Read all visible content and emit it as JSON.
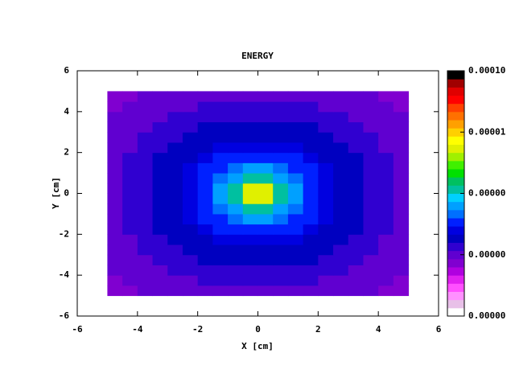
{
  "chart_data": {
    "type": "heatmap",
    "title": "ENERGY",
    "xlabel": "X [cm]",
    "ylabel": "Y [cm]",
    "xlim": [
      -6,
      6
    ],
    "ylim": [
      -6,
      6
    ],
    "xticks": [
      -6,
      -4,
      -2,
      0,
      2,
      4,
      6
    ],
    "yticks": [
      -6,
      -4,
      -2,
      0,
      2,
      4,
      6
    ],
    "xbins": [
      -5,
      -4.5,
      -4,
      -3.5,
      -3,
      -2.5,
      -2,
      -1.5,
      -1,
      -0.5,
      0,
      0.5,
      1,
      1.5,
      2,
      2.5,
      3,
      3.5,
      4,
      4.5,
      5
    ],
    "ybins": [
      -5,
      -4.5,
      -4,
      -3.5,
      -3,
      -2.5,
      -2,
      -1.5,
      -1,
      -0.5,
      0,
      0.5,
      1,
      1.5,
      2,
      2.5,
      3,
      3.5,
      4,
      4.5,
      5
    ],
    "values": [
      [
        8e-08,
        8e-08,
        9e-08,
        9e-08,
        1e-07,
        1e-07,
        1e-07,
        1e-07,
        1e-07,
        1e-07,
        1e-07,
        1e-07,
        1e-07,
        1e-07,
        1e-07,
        1e-07,
        9e-08,
        9e-08,
        8e-08,
        8e-08
      ],
      [
        8e-08,
        9e-08,
        9e-08,
        1e-07,
        1e-07,
        1e-07,
        1.2e-07,
        1.2e-07,
        1.2e-07,
        1.2e-07,
        1.2e-07,
        1.2e-07,
        1.2e-07,
        1.2e-07,
        1e-07,
        1e-07,
        1e-07,
        9e-08,
        9e-08,
        8e-08
      ],
      [
        9e-08,
        9e-08,
        1e-07,
        1e-07,
        1.2e-07,
        1.2e-07,
        1.4e-07,
        1.4e-07,
        1.4e-07,
        1.4e-07,
        1.4e-07,
        1.4e-07,
        1.4e-07,
        1.4e-07,
        1.2e-07,
        1.2e-07,
        1e-07,
        1e-07,
        9e-08,
        9e-08
      ],
      [
        9e-08,
        1e-07,
        1e-07,
        1.2e-07,
        1.2e-07,
        1.4e-07,
        1.6e-07,
        1.6e-07,
        1.6e-07,
        1.6e-07,
        1.6e-07,
        1.6e-07,
        1.6e-07,
        1.6e-07,
        1.4e-07,
        1.2e-07,
        1.2e-07,
        1e-07,
        1e-07,
        9e-08
      ],
      [
        1e-07,
        1e-07,
        1.2e-07,
        1.2e-07,
        1.4e-07,
        1.6e-07,
        1.6e-07,
        2e-07,
        2e-07,
        2e-07,
        2e-07,
        2e-07,
        2e-07,
        1.6e-07,
        1.6e-07,
        1.4e-07,
        1.2e-07,
        1.2e-07,
        1e-07,
        1e-07
      ],
      [
        1e-07,
        1e-07,
        1.2e-07,
        1.4e-07,
        1.6e-07,
        2e-07,
        2e-07,
        2.5e-07,
        2.5e-07,
        2.5e-07,
        2.5e-07,
        2.5e-07,
        2.5e-07,
        2e-07,
        2e-07,
        1.6e-07,
        1.4e-07,
        1.2e-07,
        1e-07,
        1e-07
      ],
      [
        1e-07,
        1.2e-07,
        1.4e-07,
        1.6e-07,
        1.6e-07,
        2e-07,
        2.5e-07,
        3e-07,
        3e-07,
        3e-07,
        3e-07,
        3e-07,
        3e-07,
        2.5e-07,
        2e-07,
        1.6e-07,
        1.6e-07,
        1.4e-07,
        1.2e-07,
        1e-07
      ],
      [
        1e-07,
        1.2e-07,
        1.4e-07,
        1.6e-07,
        2e-07,
        2.5e-07,
        3e-07,
        3e-07,
        4e-07,
        6e-07,
        6e-07,
        4e-07,
        3e-07,
        3e-07,
        2.5e-07,
        2e-07,
        1.6e-07,
        1.4e-07,
        1.2e-07,
        1e-07
      ],
      [
        1e-07,
        1.2e-07,
        1.4e-07,
        1.6e-07,
        2e-07,
        2.5e-07,
        3e-07,
        4e-07,
        6e-07,
        1.2e-06,
        1.2e-06,
        6e-07,
        4e-07,
        3e-07,
        2.5e-07,
        2e-07,
        1.6e-07,
        1.4e-07,
        1.2e-07,
        1e-07
      ],
      [
        1e-07,
        1.2e-07,
        1.4e-07,
        1.6e-07,
        2e-07,
        2.5e-07,
        3e-07,
        6e-07,
        1.2e-06,
        5e-06,
        5e-06,
        1.2e-06,
        6e-07,
        3e-07,
        2.5e-07,
        2e-07,
        1.6e-07,
        1.4e-07,
        1.2e-07,
        1e-07
      ],
      [
        1e-07,
        1.2e-07,
        1.4e-07,
        1.6e-07,
        2e-07,
        2.5e-07,
        3e-07,
        6e-07,
        1.2e-06,
        5e-06,
        5e-06,
        1.2e-06,
        6e-07,
        3e-07,
        2.5e-07,
        2e-07,
        1.6e-07,
        1.4e-07,
        1.2e-07,
        1e-07
      ],
      [
        1e-07,
        1.2e-07,
        1.4e-07,
        1.6e-07,
        2e-07,
        2.5e-07,
        3e-07,
        4e-07,
        6e-07,
        1.2e-06,
        1.2e-06,
        6e-07,
        4e-07,
        3e-07,
        2.5e-07,
        2e-07,
        1.6e-07,
        1.4e-07,
        1.2e-07,
        1e-07
      ],
      [
        1e-07,
        1.2e-07,
        1.4e-07,
        1.6e-07,
        2e-07,
        2.5e-07,
        3e-07,
        3e-07,
        4e-07,
        6e-07,
        6e-07,
        4e-07,
        3e-07,
        3e-07,
        2.5e-07,
        2e-07,
        1.6e-07,
        1.4e-07,
        1.2e-07,
        1e-07
      ],
      [
        1e-07,
        1.2e-07,
        1.4e-07,
        1.6e-07,
        1.6e-07,
        2e-07,
        2.5e-07,
        3e-07,
        3e-07,
        3e-07,
        3e-07,
        3e-07,
        3e-07,
        2.5e-07,
        2e-07,
        1.6e-07,
        1.6e-07,
        1.4e-07,
        1.2e-07,
        1e-07
      ],
      [
        1e-07,
        1e-07,
        1.2e-07,
        1.4e-07,
        1.6e-07,
        2e-07,
        2e-07,
        2.5e-07,
        2.5e-07,
        2.5e-07,
        2.5e-07,
        2.5e-07,
        2.5e-07,
        2e-07,
        2e-07,
        1.6e-07,
        1.4e-07,
        1.2e-07,
        1e-07,
        1e-07
      ],
      [
        1e-07,
        1e-07,
        1.2e-07,
        1.2e-07,
        1.4e-07,
        1.6e-07,
        1.6e-07,
        2e-07,
        2e-07,
        2e-07,
        2e-07,
        2e-07,
        2e-07,
        1.6e-07,
        1.6e-07,
        1.4e-07,
        1.2e-07,
        1.2e-07,
        1e-07,
        1e-07
      ],
      [
        9e-08,
        1e-07,
        1e-07,
        1.2e-07,
        1.2e-07,
        1.4e-07,
        1.6e-07,
        1.6e-07,
        1.6e-07,
        1.6e-07,
        1.6e-07,
        1.6e-07,
        1.6e-07,
        1.6e-07,
        1.4e-07,
        1.2e-07,
        1.2e-07,
        1e-07,
        1e-07,
        9e-08
      ],
      [
        9e-08,
        9e-08,
        1e-07,
        1e-07,
        1.2e-07,
        1.2e-07,
        1.4e-07,
        1.4e-07,
        1.4e-07,
        1.4e-07,
        1.4e-07,
        1.4e-07,
        1.4e-07,
        1.4e-07,
        1.2e-07,
        1.2e-07,
        1e-07,
        1e-07,
        9e-08,
        9e-08
      ],
      [
        8e-08,
        9e-08,
        9e-08,
        1e-07,
        1e-07,
        1e-07,
        1.2e-07,
        1.2e-07,
        1.2e-07,
        1.2e-07,
        1.2e-07,
        1.2e-07,
        1.2e-07,
        1.2e-07,
        1e-07,
        1e-07,
        1e-07,
        9e-08,
        9e-08,
        8e-08
      ],
      [
        8e-08,
        8e-08,
        9e-08,
        9e-08,
        1e-07,
        1e-07,
        1e-07,
        1e-07,
        1e-07,
        1e-07,
        1e-07,
        1e-07,
        1e-07,
        1e-07,
        1e-07,
        1e-07,
        9e-08,
        9e-08,
        8e-08,
        8e-08
      ]
    ],
    "colorbar": {
      "scale": "log",
      "lim": [
        1e-08,
        0.0001
      ],
      "ticks": [
        {
          "value": 0.0001,
          "label": "0.00010"
        },
        {
          "value": 1e-05,
          "label": "0.00001"
        },
        {
          "value": 1e-06,
          "label": "0.00000"
        },
        {
          "value": 1e-07,
          "label": "0.00000"
        },
        {
          "value": 1e-08,
          "label": "0.00000"
        }
      ],
      "colors": [
        "#ffffff",
        "#e8c0e8",
        "#ff90ff",
        "#ff50ff",
        "#e020f0",
        "#b000e0",
        "#8000d0",
        "#6000d0",
        "#3000d0",
        "#0000c0",
        "#0000e0",
        "#0020ff",
        "#0070ff",
        "#00a0ff",
        "#00d0ff",
        "#00c0a0",
        "#00c060",
        "#00e000",
        "#40f000",
        "#a0f000",
        "#e0f000",
        "#ffff00",
        "#ffd000",
        "#ffa000",
        "#ff7000",
        "#ff4000",
        "#ff0000",
        "#e00000",
        "#a00000",
        "#000000"
      ]
    }
  }
}
